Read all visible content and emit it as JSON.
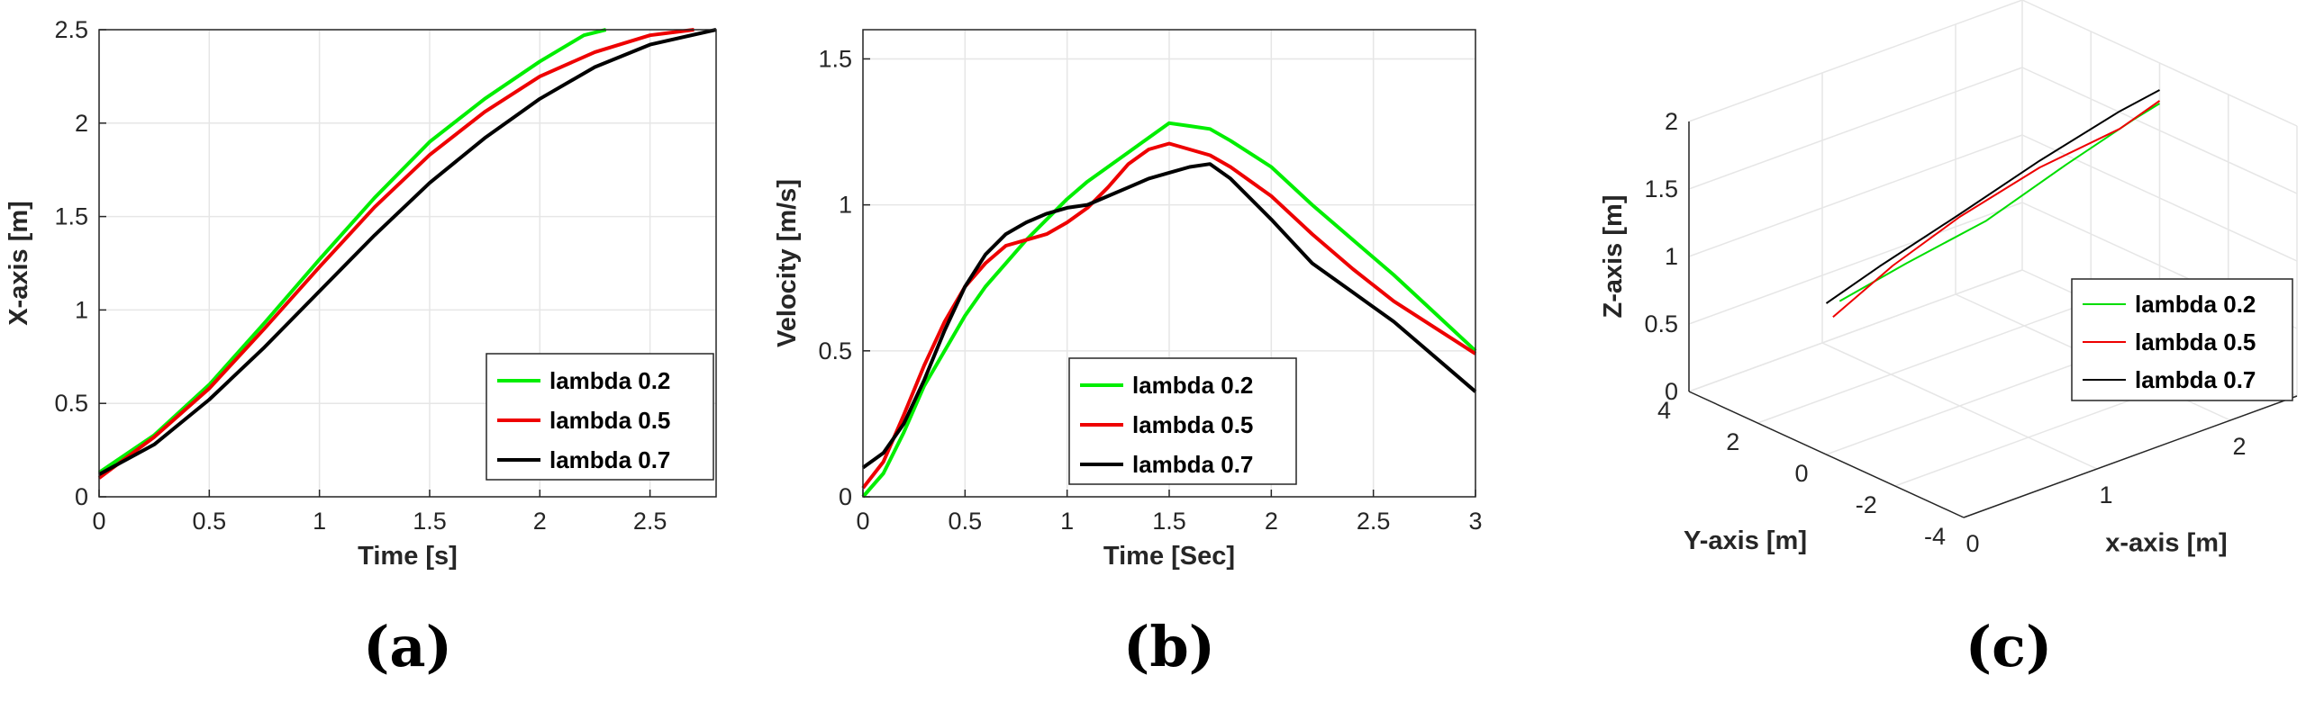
{
  "chart_data": [
    {
      "type": "line",
      "panel_label": "(a)",
      "title": "",
      "xlabel": "Time [s]",
      "ylabel": "X-axis [m]",
      "xlim": [
        0,
        2.8
      ],
      "ylim": [
        0,
        2.5
      ],
      "xticks": [
        "0",
        "0.5",
        "1",
        "1.5",
        "2",
        "2.5"
      ],
      "yticks": [
        "0",
        "0.5",
        "1",
        "1.5",
        "2",
        "2.5"
      ],
      "grid": true,
      "legend_position": "bottom-right",
      "series": [
        {
          "name": "lambda 0.2",
          "color": "#00ee00",
          "x": [
            0,
            0.25,
            0.5,
            0.75,
            1.0,
            1.25,
            1.5,
            1.75,
            2.0,
            2.2,
            2.3
          ],
          "y": [
            0.13,
            0.33,
            0.6,
            0.93,
            1.27,
            1.6,
            1.9,
            2.13,
            2.33,
            2.47,
            2.5
          ]
        },
        {
          "name": "lambda 0.5",
          "color": "#ee0000",
          "x": [
            0,
            0.25,
            0.5,
            0.75,
            1.0,
            1.25,
            1.5,
            1.75,
            2.0,
            2.25,
            2.5,
            2.7
          ],
          "y": [
            0.1,
            0.32,
            0.58,
            0.9,
            1.23,
            1.55,
            1.83,
            2.06,
            2.25,
            2.38,
            2.47,
            2.5
          ]
        },
        {
          "name": "lambda 0.7",
          "color": "#000000",
          "x": [
            0,
            0.25,
            0.5,
            0.75,
            1.0,
            1.25,
            1.5,
            1.75,
            2.0,
            2.25,
            2.5,
            2.8
          ],
          "y": [
            0.12,
            0.28,
            0.52,
            0.8,
            1.1,
            1.4,
            1.68,
            1.92,
            2.13,
            2.3,
            2.42,
            2.5
          ]
        }
      ]
    },
    {
      "type": "line",
      "panel_label": "(b)",
      "title": "",
      "xlabel": "Time [Sec]",
      "ylabel": "Velocity [m/s]",
      "xlim": [
        0,
        3
      ],
      "ylim": [
        0,
        1.6
      ],
      "xticks": [
        "0",
        "0.5",
        "1",
        "1.5",
        "2",
        "2.5",
        "3"
      ],
      "yticks": [
        "0",
        "0.5",
        "1",
        "1.5"
      ],
      "grid": true,
      "legend_position": "bottom-center",
      "series": [
        {
          "name": "lambda 0.2",
          "color": "#00ee00",
          "x": [
            0,
            0.1,
            0.2,
            0.3,
            0.4,
            0.5,
            0.6,
            0.7,
            0.8,
            0.9,
            1.0,
            1.1,
            1.2,
            1.3,
            1.4,
            1.5,
            1.6,
            1.7,
            1.8,
            2.0,
            2.2,
            2.4,
            2.6,
            2.8,
            3.0
          ],
          "y": [
            0.0,
            0.08,
            0.22,
            0.38,
            0.5,
            0.62,
            0.72,
            0.8,
            0.88,
            0.95,
            1.02,
            1.08,
            1.13,
            1.18,
            1.23,
            1.28,
            1.27,
            1.26,
            1.22,
            1.13,
            1.0,
            0.88,
            0.76,
            0.63,
            0.5
          ]
        },
        {
          "name": "lambda 0.5",
          "color": "#ee0000",
          "x": [
            0,
            0.1,
            0.2,
            0.3,
            0.4,
            0.5,
            0.6,
            0.7,
            0.8,
            0.9,
            1.0,
            1.1,
            1.2,
            1.3,
            1.4,
            1.5,
            1.6,
            1.7,
            1.8,
            2.0,
            2.2,
            2.4,
            2.6,
            2.8,
            3.0
          ],
          "y": [
            0.03,
            0.12,
            0.28,
            0.45,
            0.6,
            0.72,
            0.8,
            0.86,
            0.88,
            0.9,
            0.94,
            0.99,
            1.06,
            1.14,
            1.19,
            1.21,
            1.19,
            1.17,
            1.13,
            1.03,
            0.9,
            0.78,
            0.67,
            0.58,
            0.49
          ]
        },
        {
          "name": "lambda 0.7",
          "color": "#000000",
          "x": [
            0,
            0.1,
            0.2,
            0.3,
            0.4,
            0.5,
            0.6,
            0.7,
            0.8,
            0.9,
            1.0,
            1.1,
            1.2,
            1.3,
            1.4,
            1.5,
            1.6,
            1.7,
            1.8,
            2.0,
            2.2,
            2.4,
            2.6,
            2.8,
            3.0
          ],
          "y": [
            0.1,
            0.15,
            0.25,
            0.4,
            0.57,
            0.72,
            0.83,
            0.9,
            0.94,
            0.97,
            0.99,
            1.0,
            1.03,
            1.06,
            1.09,
            1.11,
            1.13,
            1.14,
            1.09,
            0.95,
            0.8,
            0.7,
            0.6,
            0.48,
            0.36
          ]
        }
      ]
    },
    {
      "type": "line3d",
      "panel_label": "(c)",
      "title": "",
      "xlabel": "x-axis [m]",
      "ylabel": "Y-axis [m]",
      "zlabel": "Z-axis [m]",
      "xlim": [
        0,
        2.5
      ],
      "ylim": [
        -4,
        4
      ],
      "zlim": [
        0,
        2
      ],
      "xticks": [
        "0",
        "1",
        "2"
      ],
      "yticks": [
        "4",
        "2",
        "0",
        "-2",
        "-4"
      ],
      "zticks": [
        "0",
        "0.5",
        "1",
        "1.5",
        "2"
      ],
      "grid": true,
      "legend_position": "right",
      "series": [
        {
          "name": "lambda 0.2",
          "color": "#00dd00",
          "x": [
            0.1,
            0.6,
            1.2,
            1.8,
            2.3,
            2.5
          ],
          "y": [
            0,
            0,
            0,
            0,
            0,
            0
          ],
          "z": [
            1.1,
            1.2,
            1.3,
            1.5,
            1.65,
            1.7
          ]
        },
        {
          "name": "lambda 0.5",
          "color": "#ee0000",
          "x": [
            0.05,
            0.5,
            1.0,
            1.6,
            2.2,
            2.5
          ],
          "y": [
            0,
            0,
            0,
            0,
            0,
            0
          ],
          "z": [
            1.0,
            1.22,
            1.4,
            1.55,
            1.62,
            1.72
          ]
        },
        {
          "name": "lambda 0.7",
          "color": "#000000",
          "x": [
            0.0,
            0.4,
            1.0,
            1.6,
            2.2,
            2.5
          ],
          "y": [
            0,
            0,
            0,
            0,
            0,
            0
          ],
          "z": [
            1.12,
            1.25,
            1.42,
            1.6,
            1.75,
            1.8
          ]
        }
      ]
    }
  ]
}
